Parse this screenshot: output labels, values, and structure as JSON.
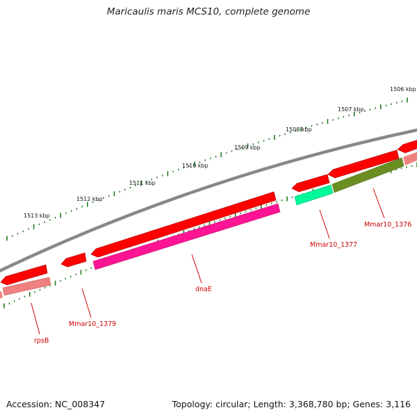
{
  "title": "Maricaulis maris MCS10, complete genome",
  "accession": "Accession: NC_008347",
  "summary": "Topology: circular; Length: 3,368,780 bp; Genes: 3,116",
  "colors": {
    "backbone": "#888888",
    "tick": "#1f7a1f",
    "label": "#cc0000",
    "leader": "#cc0000",
    "cds": "#ff0000"
  },
  "kbp_labels": [
    "1506 kbp",
    "1507 kbp",
    "1508 kbp",
    "1509 kbp",
    "1510 kbp",
    "1511 kbp",
    "1512 kbp",
    "1513 kbp"
  ],
  "genes": [
    {
      "label": "rpsB",
      "color": "#f08080"
    },
    {
      "label": "Mmar10_1379",
      "color": "#ff0000"
    },
    {
      "label": "dnaE",
      "color": "#ff1493"
    },
    {
      "label": "Mmar10_1377",
      "color": "#00fa9a"
    },
    {
      "label": "Mmar10_1376",
      "color": "#6b8e23"
    }
  ]
}
